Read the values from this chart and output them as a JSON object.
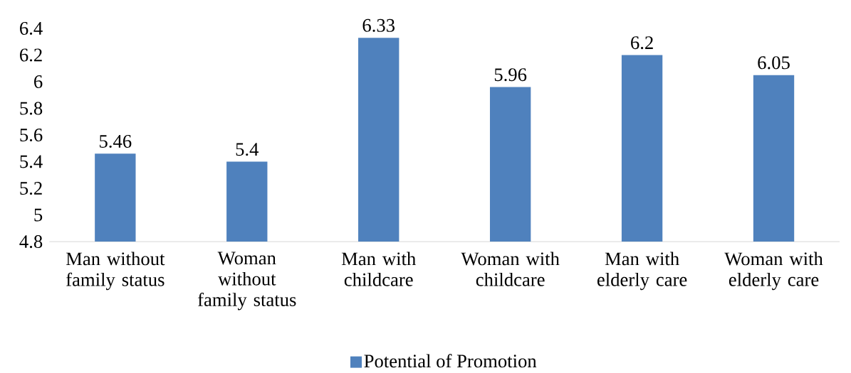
{
  "chart_data": {
    "type": "bar",
    "categories": [
      "Man without family status",
      "Woman without family status",
      "Man with childcare",
      "Woman with childcare",
      "Man with elderly care",
      "Woman with elderly care"
    ],
    "series": [
      {
        "name": "Potential of Promotion",
        "color": "#4f81bd",
        "values": [
          5.46,
          5.4,
          6.33,
          5.96,
          6.2,
          6.05
        ]
      }
    ],
    "ylim": [
      4.8,
      6.4
    ],
    "yticks": [
      4.8,
      5,
      5.2,
      5.4,
      5.6,
      5.8,
      6,
      6.2,
      6.4
    ],
    "data_labels": true,
    "grid": false,
    "legend": "bottom"
  }
}
